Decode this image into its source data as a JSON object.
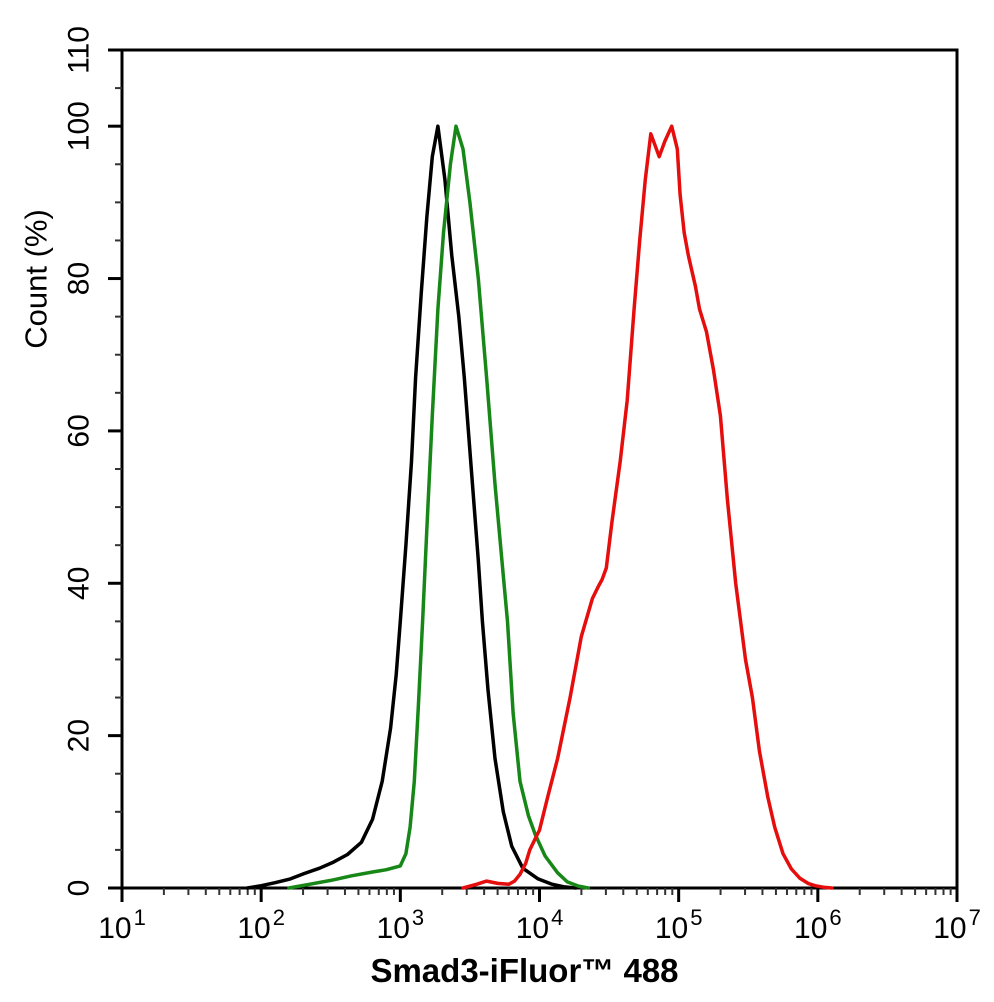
{
  "chart_data": {
    "type": "line",
    "subtype": "flow-cytometry-overlay-histogram",
    "title": "",
    "xlabel": "Smad3-iFluor™ 488",
    "ylabel": "Count  (%)",
    "x_scale": "log",
    "x_log_range": [
      1,
      7
    ],
    "x_tick_base": "10",
    "x_tick_exponents": [
      "1",
      "2",
      "3",
      "4",
      "5",
      "6",
      "7"
    ],
    "ylim": [
      0,
      110
    ],
    "y_major_ticks": [
      0,
      20,
      40,
      60,
      80,
      100,
      110
    ],
    "y_tick_labels": [
      "0",
      "20",
      "40",
      "60",
      "80",
      "100",
      "110"
    ],
    "y_minor_step": 5,
    "grid": false,
    "legend": "none",
    "axis_color": "#000000",
    "background_color": "#ffffff",
    "series": [
      {
        "name": "black-curve",
        "color": "#000000",
        "peaks_approx": [
          {
            "x": 1900,
            "y": 100
          }
        ],
        "points_logx_pct": [
          [
            1.9,
            0
          ],
          [
            2.0,
            0.3
          ],
          [
            2.1,
            0.7
          ],
          [
            2.21,
            1.2
          ],
          [
            2.31,
            1.9
          ],
          [
            2.42,
            2.6
          ],
          [
            2.52,
            3.4
          ],
          [
            2.62,
            4.4
          ],
          [
            2.72,
            6
          ],
          [
            2.8,
            9
          ],
          [
            2.87,
            14
          ],
          [
            2.93,
            21
          ],
          [
            2.97,
            28
          ],
          [
            3.0,
            35
          ],
          [
            3.04,
            45
          ],
          [
            3.08,
            56
          ],
          [
            3.11,
            67
          ],
          [
            3.15,
            78
          ],
          [
            3.19,
            88
          ],
          [
            3.23,
            96
          ],
          [
            3.27,
            100
          ],
          [
            3.32,
            93
          ],
          [
            3.37,
            83
          ],
          [
            3.42,
            75
          ],
          [
            3.46,
            67
          ],
          [
            3.51,
            55
          ],
          [
            3.56,
            43
          ],
          [
            3.59,
            35
          ],
          [
            3.63,
            26
          ],
          [
            3.68,
            17
          ],
          [
            3.74,
            10
          ],
          [
            3.8,
            5.5
          ],
          [
            3.88,
            2.6
          ],
          [
            3.99,
            1.2
          ],
          [
            4.09,
            0.5
          ],
          [
            4.18,
            0.15
          ],
          [
            4.26,
            0
          ]
        ]
      },
      {
        "name": "green-curve",
        "color": "#178717",
        "peaks_approx": [
          {
            "x": 2500,
            "y": 100
          }
        ],
        "points_logx_pct": [
          [
            2.2,
            0
          ],
          [
            2.35,
            0.5
          ],
          [
            2.5,
            1
          ],
          [
            2.65,
            1.6
          ],
          [
            2.8,
            2.1
          ],
          [
            2.9,
            2.4
          ],
          [
            3.0,
            2.9
          ],
          [
            3.04,
            4.5
          ],
          [
            3.07,
            8
          ],
          [
            3.1,
            14
          ],
          [
            3.13,
            24
          ],
          [
            3.16,
            35
          ],
          [
            3.19,
            47
          ],
          [
            3.23,
            62
          ],
          [
            3.27,
            76
          ],
          [
            3.31,
            86
          ],
          [
            3.36,
            95
          ],
          [
            3.4,
            100
          ],
          [
            3.45,
            97
          ],
          [
            3.5,
            90
          ],
          [
            3.56,
            80
          ],
          [
            3.62,
            67
          ],
          [
            3.68,
            53
          ],
          [
            3.74,
            41
          ],
          [
            3.77,
            35
          ],
          [
            3.81,
            23
          ],
          [
            3.86,
            14
          ],
          [
            3.92,
            9.5
          ],
          [
            3.97,
            7
          ],
          [
            4.04,
            4.2
          ],
          [
            4.13,
            2
          ],
          [
            4.2,
            0.8
          ],
          [
            4.28,
            0.25
          ],
          [
            4.35,
            0
          ]
        ]
      },
      {
        "name": "red-curve",
        "color": "#e60d0d",
        "peaks_approx": [
          {
            "x": 63000,
            "y": 99
          },
          {
            "x": 89000,
            "y": 100
          }
        ],
        "points_logx_pct": [
          [
            3.45,
            0
          ],
          [
            3.55,
            0.5
          ],
          [
            3.62,
            0.9
          ],
          [
            3.7,
            0.6
          ],
          [
            3.78,
            0.5
          ],
          [
            3.82,
            0.9
          ],
          [
            3.86,
            1.8
          ],
          [
            3.9,
            3.2
          ],
          [
            3.93,
            5
          ],
          [
            3.97,
            6.5
          ],
          [
            4.0,
            7.6
          ],
          [
            4.06,
            12
          ],
          [
            4.13,
            17
          ],
          [
            4.22,
            25
          ],
          [
            4.3,
            33
          ],
          [
            4.38,
            38
          ],
          [
            4.42,
            39.5
          ],
          [
            4.45,
            40.5
          ],
          [
            4.48,
            42
          ],
          [
            4.52,
            48
          ],
          [
            4.58,
            56
          ],
          [
            4.63,
            64
          ],
          [
            4.68,
            76
          ],
          [
            4.72,
            85
          ],
          [
            4.76,
            93
          ],
          [
            4.8,
            99
          ],
          [
            4.83,
            97.5
          ],
          [
            4.86,
            96
          ],
          [
            4.9,
            98
          ],
          [
            4.95,
            100
          ],
          [
            4.99,
            97
          ],
          [
            5.01,
            91
          ],
          [
            5.04,
            86
          ],
          [
            5.07,
            83
          ],
          [
            5.12,
            79
          ],
          [
            5.15,
            76
          ],
          [
            5.2,
            73
          ],
          [
            5.25,
            68
          ],
          [
            5.3,
            62
          ],
          [
            5.35,
            51
          ],
          [
            5.41,
            40
          ],
          [
            5.48,
            30
          ],
          [
            5.53,
            25
          ],
          [
            5.58,
            18
          ],
          [
            5.64,
            12
          ],
          [
            5.69,
            8
          ],
          [
            5.75,
            4.5
          ],
          [
            5.81,
            2.5
          ],
          [
            5.87,
            1.3
          ],
          [
            5.93,
            0.6
          ],
          [
            5.98,
            0.3
          ],
          [
            6.04,
            0.1
          ],
          [
            6.1,
            0
          ]
        ]
      }
    ]
  }
}
